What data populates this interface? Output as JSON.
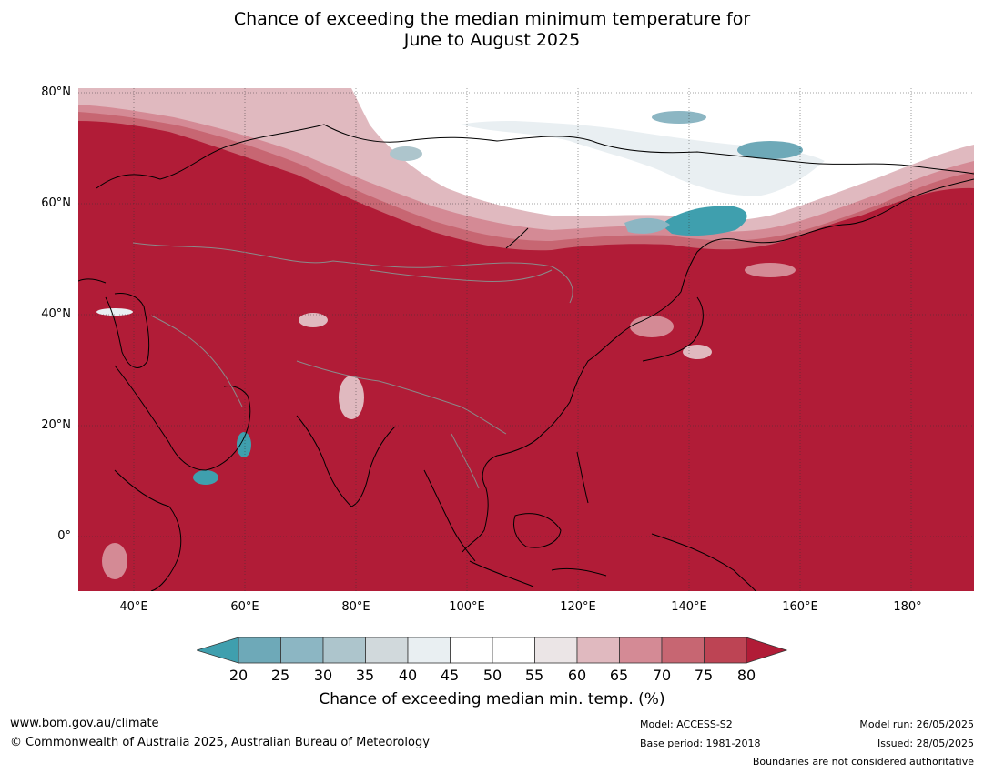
{
  "title_line1": "Chance of exceeding the median minimum temperature for",
  "title_line2": "June to August 2025",
  "map": {
    "lat_labels": [
      {
        "text": "80°N",
        "lat": 80
      },
      {
        "text": "60°N",
        "lat": 60
      },
      {
        "text": "40°N",
        "lat": 40
      },
      {
        "text": "20°N",
        "lat": 20
      },
      {
        "text": "0°",
        "lat": 0
      }
    ],
    "lon_labels": [
      {
        "text": "40°E",
        "lon": 40
      },
      {
        "text": "60°E",
        "lon": 60
      },
      {
        "text": "80°E",
        "lon": 80
      },
      {
        "text": "100°E",
        "lon": 100
      },
      {
        "text": "120°E",
        "lon": 120
      },
      {
        "text": "140°E",
        "lon": 140
      },
      {
        "text": "160°E",
        "lon": 160
      },
      {
        "text": "180°",
        "lon": 180
      }
    ],
    "extent": {
      "lon_min": 30,
      "lon_max": 191.5,
      "lat_min": -10,
      "lat_max": 80.5
    },
    "dominant_color": "#b11c37"
  },
  "colorbar": {
    "ticks": [
      "20",
      "25",
      "30",
      "35",
      "40",
      "45",
      "50",
      "55",
      "60",
      "65",
      "70",
      "75",
      "80"
    ],
    "colors": [
      "#6ea9b8",
      "#8cb6c3",
      "#adc5cc",
      "#d1d9dc",
      "#e9eff2",
      "#ffffff",
      "#ffffff",
      "#ebe5e6",
      "#e0b9bf",
      "#d48a95",
      "#c76672",
      "#bd4454"
    ],
    "under_color": "#3f9fae",
    "over_color": "#b11c37",
    "label": "Chance of exceeding median min. temp. (%)"
  },
  "footer": {
    "url": "www.bom.gov.au/climate",
    "copyright": "© Commonwealth of Australia 2025, Australian Bureau of Meteorology",
    "model": "Model: ACCESS-S2",
    "base_period": "Base period: 1981-2018",
    "model_run": "Model run: 26/05/2025",
    "issued": "Issued: 28/05/2025",
    "disclaimer": "Boundaries are not considered authoritative"
  }
}
